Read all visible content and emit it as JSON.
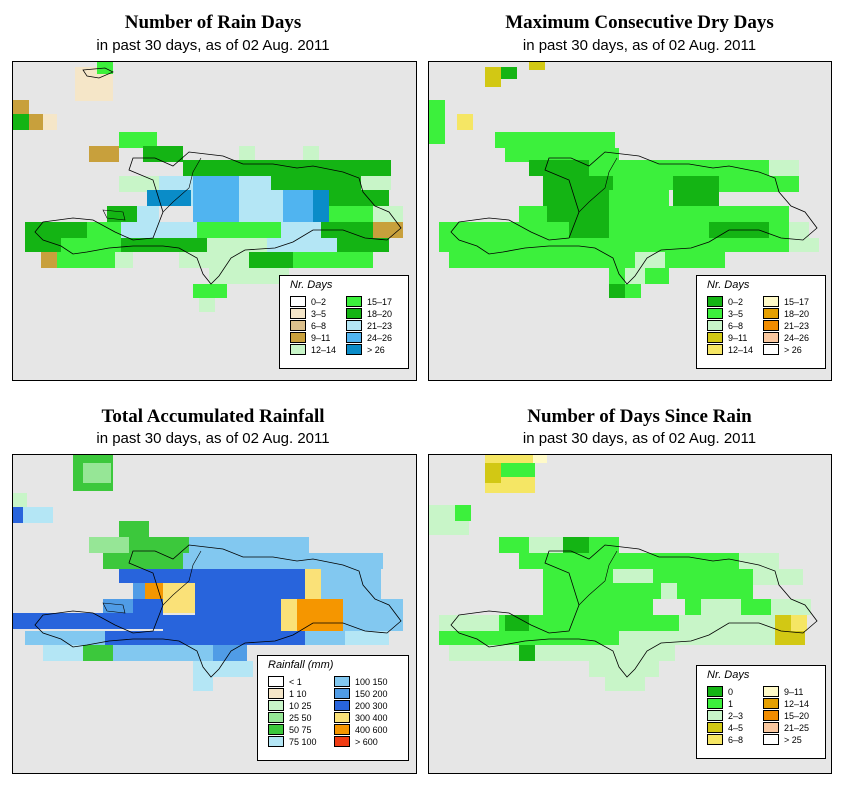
{
  "panels": [
    {
      "title": "Number of Rain Days",
      "subtitle": "in past 30 days, as of  02 Aug. 2011",
      "legend_title": "Nr. Days",
      "legend": [
        {
          "label": "0–2",
          "color": "#ffffff"
        },
        {
          "label": "3–5",
          "color": "#f5e6c8"
        },
        {
          "label": "6–8",
          "color": "#dcc08c"
        },
        {
          "label": "9–11",
          "color": "#c8a03c"
        },
        {
          "label": "12–14",
          "color": "#c8f5c8"
        },
        {
          "label": "15–17",
          "color": "#3cf03c"
        },
        {
          "label": "18–20",
          "color": "#14b414"
        },
        {
          "label": "21–23",
          "color": "#b4e6f5"
        },
        {
          "label": "24–26",
          "color": "#50b4f0"
        },
        {
          "label": "> 26",
          "color": "#0a8cc8"
        }
      ]
    },
    {
      "title": "Maximum Consecutive Dry Days",
      "subtitle": "in past 30 days, as of  02 Aug. 2011",
      "legend_title": "Nr. Days",
      "legend": [
        {
          "label": "0–2",
          "color": "#14b414"
        },
        {
          "label": "3–5",
          "color": "#3cf03c"
        },
        {
          "label": "6–8",
          "color": "#c8f5c8"
        },
        {
          "label": "9–11",
          "color": "#d2c814"
        },
        {
          "label": "12–14",
          "color": "#f5e664"
        },
        {
          "label": "15–17",
          "color": "#fffac8"
        },
        {
          "label": "18–20",
          "color": "#e6a000"
        },
        {
          "label": "21–23",
          "color": "#f08c00"
        },
        {
          "label": "24–26",
          "color": "#fac8a0"
        },
        {
          "label": "> 26",
          "color": "#ffffff"
        }
      ]
    },
    {
      "title": "Total Accumulated Rainfall",
      "subtitle": "in past 30 days, as of  02 Aug. 2011",
      "legend_title": "Rainfall (mm)",
      "legend": [
        {
          "label": "< 1",
          "color": "#ffffff"
        },
        {
          "label": "1    10",
          "color": "#f5e6c8"
        },
        {
          "label": "10   25",
          "color": "#c8f5c8"
        },
        {
          "label": "25   50",
          "color": "#96e696"
        },
        {
          "label": "50   75",
          "color": "#3cc83c"
        },
        {
          "label": "75  100",
          "color": "#b4e6f5"
        },
        {
          "label": "100  150",
          "color": "#82c8f0"
        },
        {
          "label": "150  200",
          "color": "#509ce6"
        },
        {
          "label": "200  300",
          "color": "#2864dc"
        },
        {
          "label": "300  400",
          "color": "#fae178"
        },
        {
          "label": "400  600",
          "color": "#f59600"
        },
        {
          "label": "> 600",
          "color": "#f03c14"
        }
      ]
    },
    {
      "title": "Number of Days Since Rain",
      "subtitle": "in past 30 days, as of  02 Aug. 2011",
      "legend_title": "Nr. Days",
      "legend": [
        {
          "label": "0",
          "color": "#14b414"
        },
        {
          "label": "1",
          "color": "#3cf03c"
        },
        {
          "label": "2–3",
          "color": "#c8f5c8"
        },
        {
          "label": "4–5",
          "color": "#d2c814"
        },
        {
          "label": "6–8",
          "color": "#f5e664"
        },
        {
          "label": "9–11",
          "color": "#fffac8"
        },
        {
          "label": "12–14",
          "color": "#e6a000"
        },
        {
          "label": "15–20",
          "color": "#f08c00"
        },
        {
          "label": "21–25",
          "color": "#fac8a0"
        },
        {
          "label": "> 25",
          "color": "#ffffff"
        }
      ]
    }
  ]
}
